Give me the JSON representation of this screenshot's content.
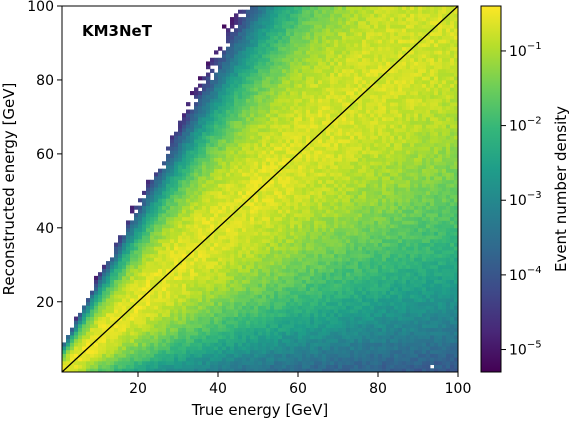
{
  "chart_data": {
    "type": "heatmap",
    "annotation": "KM3NeT",
    "xlabel": "True energy [GeV]",
    "ylabel": "Reconstructed energy [GeV]",
    "xlim": [
      1,
      100
    ],
    "ylim": [
      1,
      100
    ],
    "x_ticks": [
      20,
      40,
      60,
      80,
      100
    ],
    "y_ticks": [
      20,
      40,
      60,
      80,
      100
    ],
    "diagonal_line": {
      "from": [
        1,
        1
      ],
      "to": [
        100,
        100
      ],
      "color": "#000000"
    },
    "colorbar": {
      "label": "Event number density",
      "scale": "log",
      "range": [
        5e-06,
        0.4
      ],
      "ticks": [
        {
          "value": 1e-05,
          "base": "10",
          "exp": "−5"
        },
        {
          "value": 0.0001,
          "base": "10",
          "exp": "−4"
        },
        {
          "value": 0.001,
          "base": "10",
          "exp": "−3"
        },
        {
          "value": 0.01,
          "base": "10",
          "exp": "−2"
        },
        {
          "value": 0.1,
          "base": "10",
          "exp": "−1"
        }
      ],
      "colormap": [
        "#440154",
        "#482878",
        "#3e4a89",
        "#31688e",
        "#26828e",
        "#1f9e89",
        "#35b779",
        "#6ece58",
        "#b5de2b",
        "#fde725"
      ]
    },
    "density_model": {
      "bin_width": 1,
      "ridge": "y = x",
      "peak_density": 0.3,
      "spread_fraction": 0.24
    }
  }
}
